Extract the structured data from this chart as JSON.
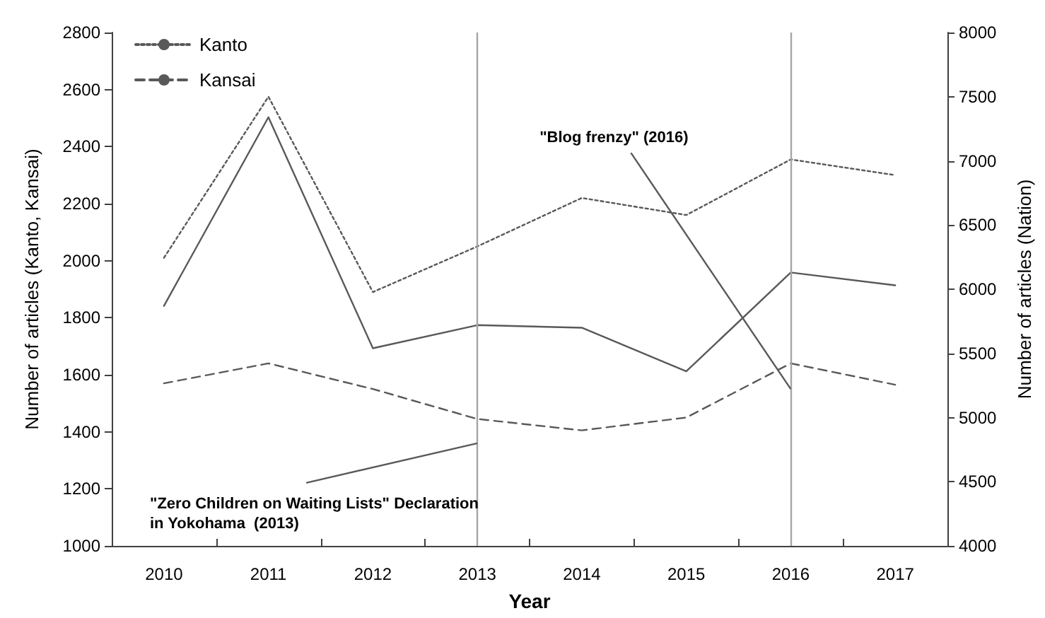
{
  "chart_data": {
    "type": "line",
    "xlabel": "Year",
    "ylabel": "Number of articles (Kanto, Kansai)",
    "y2label": "Number of articles (Nation)",
    "categories": [
      "2010",
      "2011",
      "2012",
      "2013",
      "2014",
      "2015",
      "2016",
      "2017"
    ],
    "series": [
      {
        "name": "Kanto",
        "color": "#595959",
        "line_style": "dotted",
        "values": [
          2010,
          2575,
          1890,
          2050,
          2220,
          2160,
          2355,
          2300
        ]
      },
      {
        "name": "Kansai",
        "color": "#595959",
        "line_style": "dashed",
        "values": [
          1570,
          1640,
          1550,
          1445,
          1405,
          1450,
          1640,
          1565
        ]
      },
      {
        "color": "#595959",
        "line_style": "solid",
        "axis": "y2",
        "values": [
          5870,
          7340,
          5540,
          5720,
          5700,
          5360,
          6130,
          6030
        ]
      }
    ],
    "ylim": [
      1000,
      2800
    ],
    "yticks": [
      1000,
      1200,
      1400,
      1600,
      1800,
      2000,
      2200,
      2400,
      2600,
      2800
    ],
    "y2lim": [
      4000,
      8000
    ],
    "y2ticks": [
      4000,
      4500,
      5000,
      5500,
      6000,
      6500,
      7000,
      7500,
      8000
    ],
    "ref_lines": [
      {
        "axis": "x",
        "value": "2013",
        "color": "#a6a6a6"
      },
      {
        "axis": "x",
        "value": "2016",
        "color": "#a6a6a6"
      }
    ],
    "annotations": [
      {
        "text": "\"Zero Children on Waiting Lists\" Declaration in Yokohama  (2013)",
        "x": "2013",
        "y": 1360
      },
      {
        "text": "\"Blog frenzy\" (2016)",
        "x": "2016",
        "y": 1550
      }
    ],
    "marker": "none",
    "grid": false,
    "legend": "top left"
  }
}
